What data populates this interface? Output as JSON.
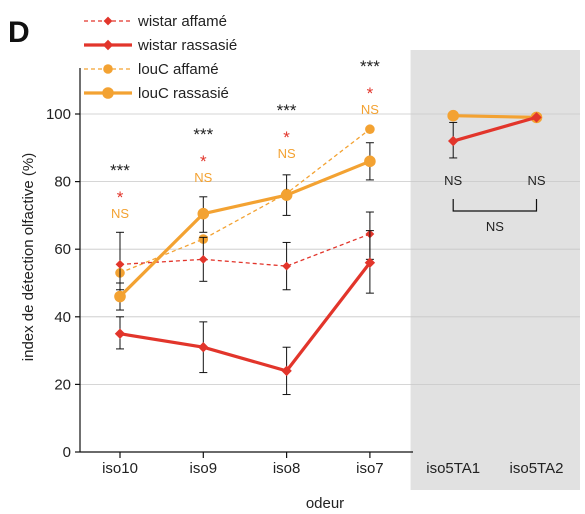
{
  "chart_data": {
    "type": "line",
    "panel_label": "D",
    "xlabel": "odeur",
    "ylabel": "index de détection olfactive (%)",
    "ylim": [
      0,
      100
    ],
    "yticks": [
      0,
      20,
      40,
      60,
      80,
      100
    ],
    "categories": [
      "iso10",
      "iso9",
      "iso8",
      "iso7",
      "iso5TA1",
      "iso5TA2"
    ],
    "grid": true,
    "legend_position": "top-left",
    "colors": {
      "red": "#e2352b",
      "orange": "#f3a232",
      "shade": "#e1e1e1"
    },
    "series": [
      {
        "name": "wistar affamé",
        "color": "#e2352b",
        "style": "dashed",
        "marker": "diamond",
        "points": [
          {
            "x": "iso10",
            "y": 55.5,
            "err": [
              48,
              65
            ]
          },
          {
            "x": "iso9",
            "y": 57,
            "err": [
              50.5,
              63.5
            ]
          },
          {
            "x": "iso8",
            "y": 55,
            "err": [
              48,
              62
            ]
          },
          {
            "x": "iso7",
            "y": 64.5,
            "err": [
              57,
              71
            ]
          }
        ]
      },
      {
        "name": "wistar rassasié",
        "color": "#e2352b",
        "style": "solid",
        "marker": "diamond",
        "points": [
          {
            "x": "iso10",
            "y": 35,
            "err": [
              30.5,
              40
            ]
          },
          {
            "x": "iso9",
            "y": 31,
            "err": [
              23.5,
              38.5
            ]
          },
          {
            "x": "iso8",
            "y": 24,
            "err": [
              17,
              31
            ]
          },
          {
            "x": "iso7",
            "y": 56,
            "err": [
              47,
              65.5
            ]
          },
          {
            "x": "iso5TA1",
            "y": 92,
            "err": [
              87,
              97.5
            ]
          },
          {
            "x": "iso5TA2",
            "y": 99,
            "err": null
          }
        ]
      },
      {
        "name": "louC affamé",
        "color": "#f3a232",
        "style": "dashed",
        "marker": "circle",
        "points": [
          {
            "x": "iso10",
            "y": 53,
            "err": null
          },
          {
            "x": "iso9",
            "y": 63,
            "err": null
          },
          {
            "x": "iso8",
            "y": 76.5,
            "err": null
          },
          {
            "x": "iso7",
            "y": 95.5,
            "err": null
          }
        ]
      },
      {
        "name": "louC rassasié",
        "color": "#f3a232",
        "style": "solid",
        "marker": "circle",
        "points": [
          {
            "x": "iso10",
            "y": 46,
            "err": [
              42,
              50
            ]
          },
          {
            "x": "iso9",
            "y": 70.5,
            "err": [
              65,
              75.5
            ]
          },
          {
            "x": "iso8",
            "y": 76,
            "err": [
              70,
              82
            ]
          },
          {
            "x": "iso7",
            "y": 86,
            "err": [
              80.5,
              91.5
            ]
          },
          {
            "x": "iso5TA1",
            "y": 99.5,
            "err": null
          },
          {
            "x": "iso5TA2",
            "y": 99,
            "err": null
          }
        ]
      }
    ],
    "shaded_categories": [
      "iso5TA1",
      "iso5TA2"
    ],
    "annotations": [
      {
        "x": "iso10",
        "stars": "***",
        "red_star": "*",
        "ns": "NS"
      },
      {
        "x": "iso9",
        "stars": "***",
        "red_star": "*",
        "ns": "NS"
      },
      {
        "x": "iso8",
        "stars": "***",
        "red_star": "*",
        "ns": "NS"
      },
      {
        "x": "iso7",
        "stars": "***",
        "red_star": "*",
        "ns": "NS"
      }
    ],
    "shaded_annotations": {
      "ns_left": "NS",
      "ns_right": "NS",
      "ns_bracket": "NS"
    }
  }
}
